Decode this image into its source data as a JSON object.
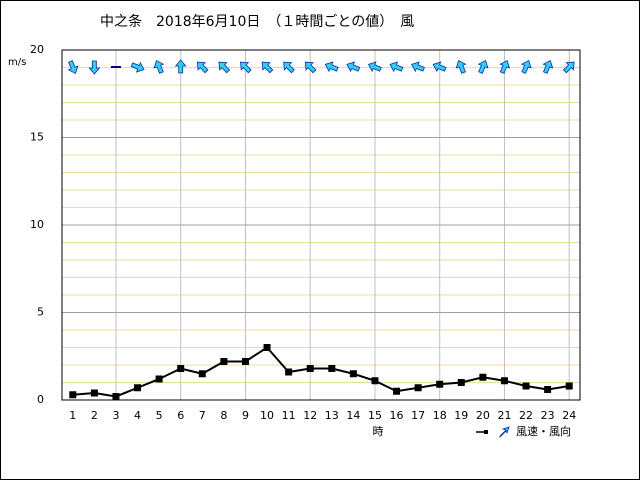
{
  "chart_data": {
    "type": "line",
    "title": "中之条　2018年6月10日　（１時間ごとの値）　風",
    "ylabel": "m/s",
    "xlabel": "時",
    "legend_label": "風速・風向",
    "categories": [
      "1",
      "2",
      "3",
      "4",
      "5",
      "6",
      "7",
      "8",
      "9",
      "10",
      "11",
      "12",
      "13",
      "14",
      "15",
      "16",
      "17",
      "18",
      "19",
      "20",
      "21",
      "22",
      "23",
      "24"
    ],
    "series": [
      {
        "name": "風速",
        "color": "#000000",
        "values": [
          0.3,
          0.4,
          0.2,
          0.7,
          1.2,
          1.8,
          1.5,
          2.2,
          2.2,
          3.0,
          1.6,
          1.8,
          1.8,
          1.5,
          1.1,
          0.5,
          0.7,
          0.9,
          1.0,
          1.3,
          1.1,
          0.8,
          0.6,
          0.8
        ]
      }
    ],
    "directions": [
      157.5,
      180,
      null,
      112.5,
      337.5,
      0,
      315,
      315,
      315,
      315,
      315,
      315,
      292.5,
      292.5,
      292.5,
      292.5,
      292.5,
      292.5,
      337.5,
      22.5,
      22.5,
      22.5,
      22.5,
      45
    ],
    "arrow_color": "#33ccff",
    "ylim": [
      0,
      20
    ],
    "yticks": [
      0,
      5,
      10,
      15,
      20
    ],
    "yminorticks": [
      1,
      2,
      3,
      4,
      6,
      7,
      8,
      9,
      11,
      12,
      13,
      14,
      16,
      17,
      18,
      19
    ],
    "vgrid_categories": [
      3,
      6,
      9,
      12,
      15,
      18,
      21,
      24
    ],
    "grid": true
  }
}
